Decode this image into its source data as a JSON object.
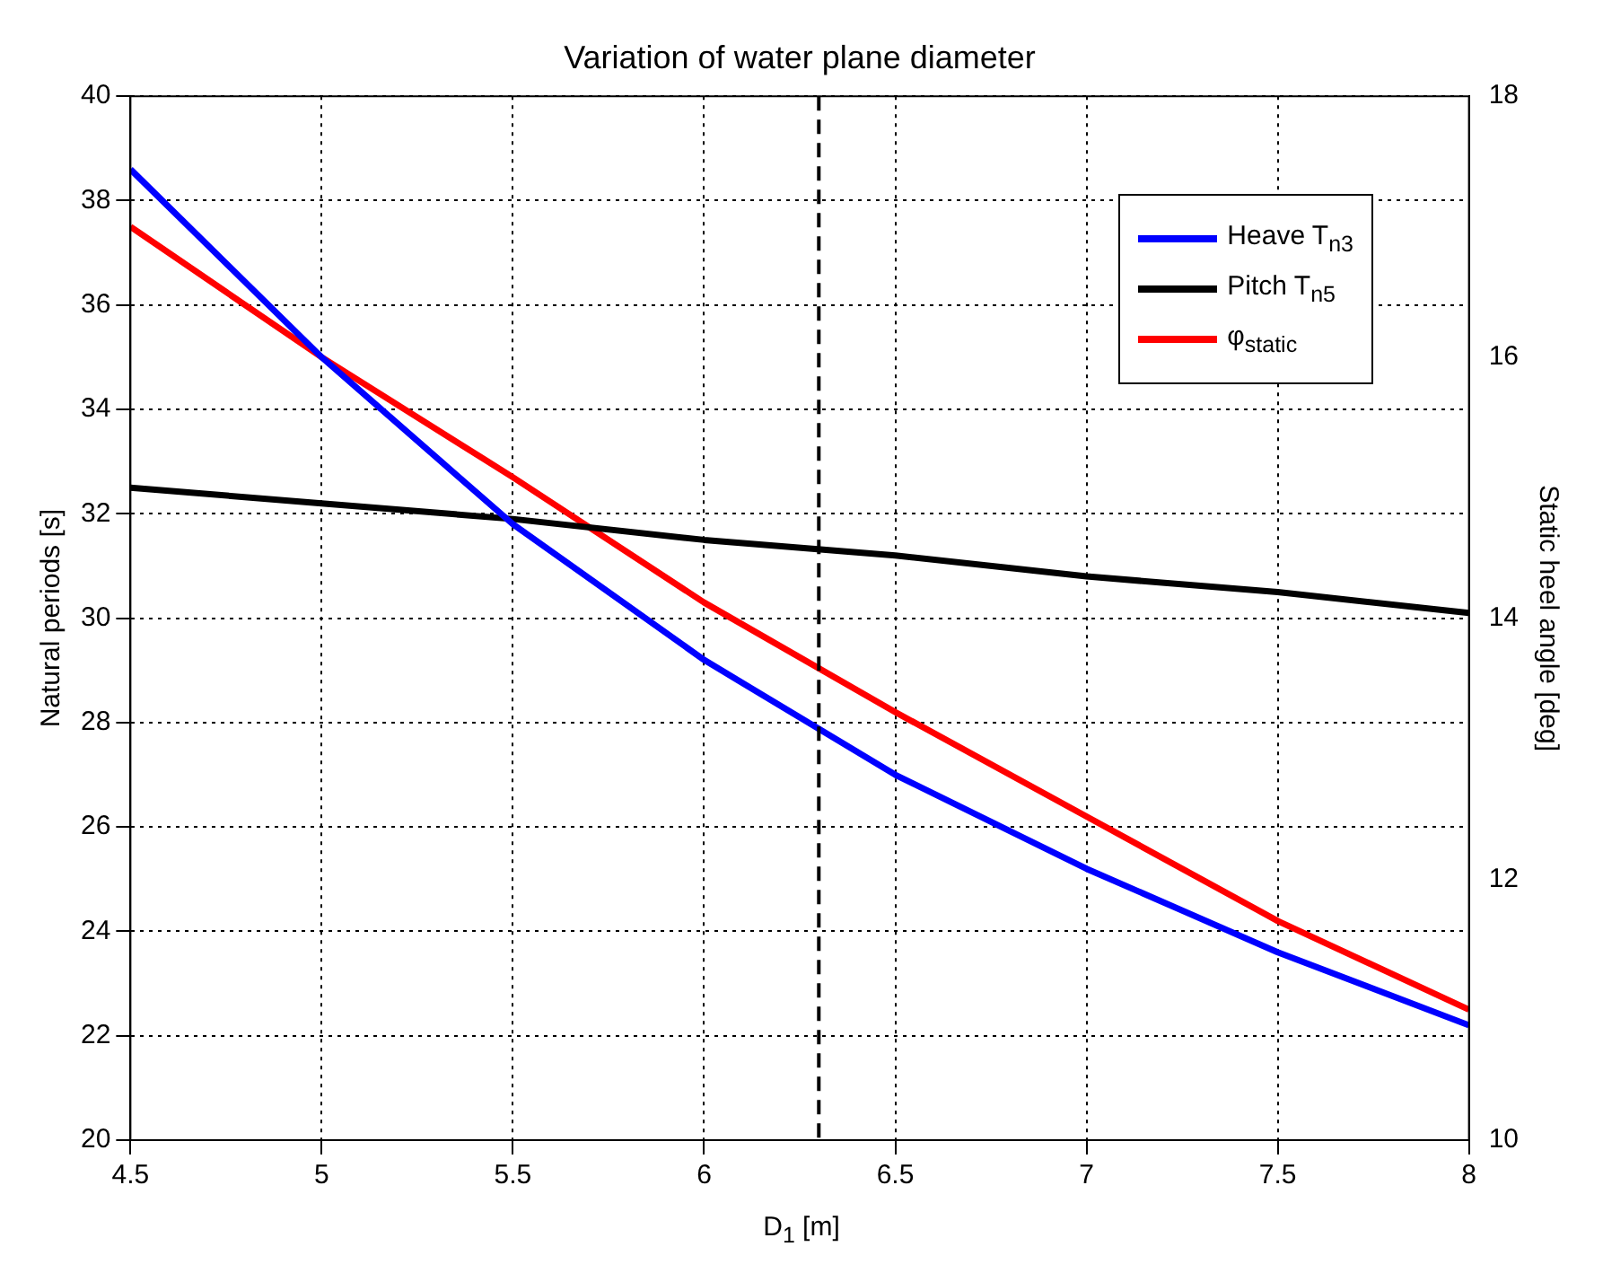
{
  "chart_data": {
    "type": "line",
    "title": "Variation of water plane diameter",
    "xlabel": "D$_{1}$ [m]",
    "ylabel": "Natural periods [s]",
    "y2label": "Static heel angle [deg]",
    "x": [
      4.5,
      5,
      5.5,
      6,
      6.5,
      7,
      7.5,
      8
    ],
    "series": [
      {
        "name": "Heave  T$_{n3}$",
        "color": "#0000ff",
        "values": [
          38.6,
          35.0,
          31.8,
          29.2,
          27.0,
          25.2,
          23.6,
          22.2
        ]
      },
      {
        "name": "Pitch  T$_{n5}$",
        "color": "#000000",
        "values": [
          32.5,
          32.2,
          31.9,
          31.5,
          31.2,
          30.8,
          30.5,
          30.1
        ]
      },
      {
        "name": "φ$_{static}$",
        "color": "#ff0000",
        "axis": "y2",
        "values": [
          17.0,
          16.0,
          15.08,
          14.12,
          13.28,
          12.48,
          11.68,
          11.0
        ]
      }
    ],
    "xlim": [
      4.5,
      8
    ],
    "xticks": [
      4.5,
      5,
      5.5,
      6,
      6.5,
      7,
      7.5,
      8
    ],
    "ylim": [
      20,
      40
    ],
    "yticks": [
      20,
      22,
      24,
      26,
      28,
      30,
      32,
      34,
      36,
      38,
      40
    ],
    "y2lim": [
      10,
      18
    ],
    "y2ticks": [
      10,
      12,
      14,
      16,
      18
    ],
    "ref_lines": [
      {
        "axis": "x",
        "value": 6.3,
        "color": "#000000",
        "line_style": "dashed"
      }
    ],
    "grid": true,
    "legend": "top right",
    "line_style": "solid",
    "marker": "none"
  }
}
